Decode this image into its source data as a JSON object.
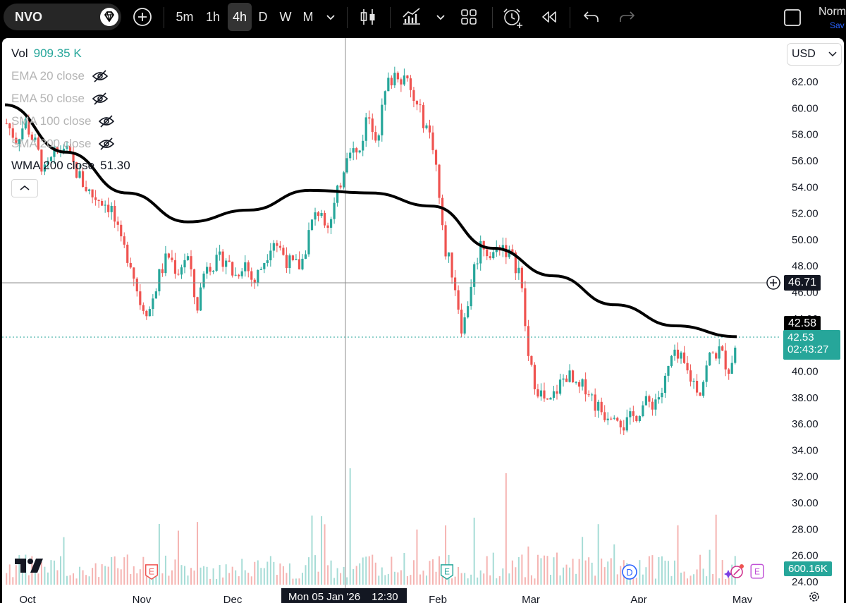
{
  "toolbar": {
    "symbol": "NVO",
    "timeframes": [
      "5m",
      "1h",
      "4h",
      "D",
      "W",
      "M"
    ],
    "active_timeframe": "4h",
    "right_text_top": "Norm",
    "right_text_bottom": "Sav"
  },
  "legend": {
    "vol_label": "Vol",
    "vol_value": "909.35 K",
    "ema20_label": "EMA 20 close",
    "ema50_label": "EMA 50 close",
    "sma100_label": "SMA 100 close",
    "sma200_label": "SMA 200 close",
    "wma_label": "WMA 200 close",
    "wma_value": "51.30"
  },
  "currency": "USD",
  "price_axis": {
    "ticks": [
      "62.00",
      "60.00",
      "58.00",
      "56.00",
      "54.00",
      "52.00",
      "50.00",
      "48.00",
      "46.00",
      "44.00",
      "42.00",
      "40.00",
      "38.00",
      "36.00",
      "34.00",
      "32.00",
      "30.00",
      "28.00",
      "26.00",
      "24.00"
    ],
    "crosshair_price": "46.71",
    "wma_price": "42.58",
    "last_price": "42.53",
    "countdown": "02:43:27",
    "volume_value": "600.16K"
  },
  "time_axis": {
    "labels": [
      "Oct",
      "Nov",
      "Dec",
      "Feb",
      "Mar",
      "Apr",
      "May"
    ],
    "crosshair_label": "Mon 05 Jan '26",
    "crosshair_time": "12:30"
  },
  "events": [
    "E",
    "E",
    "D",
    "E"
  ],
  "colors": {
    "up": "#26a69a",
    "down": "#ef5350",
    "wma": "#000000",
    "last_price": "#26a69a",
    "crosshair_bg": "#131722"
  },
  "chart_data": {
    "type": "candlestick",
    "symbol": "NVO",
    "interval": "4h",
    "ylim": [
      24,
      63
    ],
    "price_path": [
      [
        "Oct",
        58.8
      ],
      [
        "",
        57.6
      ],
      [
        "",
        58.9
      ],
      [
        "",
        57.2
      ],
      [
        "",
        55.0
      ],
      [
        "",
        56.3
      ],
      [
        "",
        57.1
      ],
      [
        "",
        55.6
      ],
      [
        "",
        54.3
      ],
      [
        "",
        53.3
      ],
      [
        "",
        53.0
      ],
      [
        "",
        52.4
      ],
      [
        "Nov",
        49.6
      ],
      [
        "",
        48.5
      ],
      [
        "",
        45.3
      ],
      [
        "",
        44.5
      ],
      [
        "",
        47.1
      ],
      [
        "",
        48.8
      ],
      [
        "",
        47.5
      ],
      [
        "",
        48.9
      ],
      [
        "",
        44.6
      ],
      [
        "",
        48.3
      ],
      [
        "",
        48.1
      ],
      [
        "Dec",
        48.7
      ],
      [
        "",
        47.1
      ],
      [
        "",
        48.4
      ],
      [
        "",
        46.6
      ],
      [
        "",
        48.2
      ],
      [
        "",
        50.1
      ],
      [
        "",
        49.0
      ],
      [
        "",
        47.9
      ],
      [
        "",
        48.0
      ],
      [
        "",
        51.0
      ],
      [
        "",
        52.4
      ],
      [
        "Jan",
        51.0
      ],
      [
        "",
        53.9
      ],
      [
        "",
        57.3
      ],
      [
        "",
        56.2
      ],
      [
        "",
        59.6
      ],
      [
        "",
        57.8
      ],
      [
        "",
        61.6
      ],
      [
        "",
        62.8
      ],
      [
        "",
        62.1
      ],
      [
        "",
        60.2
      ],
      [
        "",
        58.9
      ],
      [
        "Feb",
        57.0
      ],
      [
        "",
        49.6
      ],
      [
        "",
        47.3
      ],
      [
        "",
        42.9
      ],
      [
        "",
        47.2
      ],
      [
        "",
        49.9
      ],
      [
        "",
        48.5
      ],
      [
        "",
        49.8
      ],
      [
        "",
        48.7
      ],
      [
        "",
        47.6
      ],
      [
        "Mar",
        40.3
      ],
      [
        "",
        38.5
      ],
      [
        "",
        37.2
      ],
      [
        "",
        38.7
      ],
      [
        "",
        39.8
      ],
      [
        "",
        38.4
      ],
      [
        "",
        38.9
      ],
      [
        "",
        37.4
      ],
      [
        "",
        36.7
      ],
      [
        "",
        37.1
      ],
      [
        "",
        35.8
      ],
      [
        "Apr",
        36.5
      ],
      [
        "",
        37.4
      ],
      [
        "",
        37.6
      ],
      [
        "",
        38.4
      ],
      [
        "",
        41.0
      ],
      [
        "",
        40.7
      ],
      [
        "",
        39.4
      ],
      [
        "",
        38.5
      ],
      [
        "",
        41.1
      ],
      [
        "",
        41.5
      ],
      [
        "",
        40.2
      ],
      [
        "May",
        42.53
      ]
    ],
    "wma200": [
      [
        "Oct",
        60.2
      ],
      [
        "Nov",
        56.6
      ],
      [
        "Dec",
        53.5
      ],
      [
        "Jan",
        51.3
      ],
      [
        "",
        52.2
      ],
      [
        "",
        53.7
      ],
      [
        "Feb",
        53.5
      ],
      [
        "",
        52.5
      ],
      [
        "Mar",
        49.3
      ],
      [
        "",
        47.2
      ],
      [
        "Apr",
        45.0
      ],
      [
        "",
        43.4
      ],
      [
        "May",
        42.58
      ]
    ],
    "volume_max_label": "600.16K"
  }
}
